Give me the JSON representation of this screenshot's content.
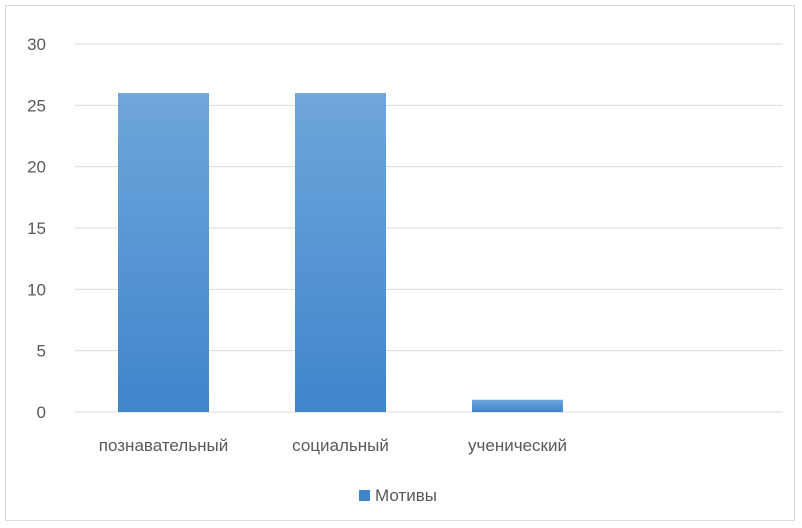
{
  "chart_data": {
    "type": "bar",
    "categories": [
      "познавательный",
      "социальный",
      "ученический",
      ""
    ],
    "series": [
      {
        "name": "Мотивы",
        "values": [
          26,
          26,
          1,
          0
        ]
      }
    ],
    "ylim": [
      0,
      30
    ],
    "yticks": [
      "0",
      "5",
      "10",
      "15",
      "20",
      "25",
      "30"
    ],
    "grid": true,
    "legend_position": "bottom",
    "colors": {
      "bar_top": "#6fa6db",
      "bar_bottom": "#3f85cc",
      "grid": "#d9d9d9",
      "text": "#595959"
    }
  }
}
